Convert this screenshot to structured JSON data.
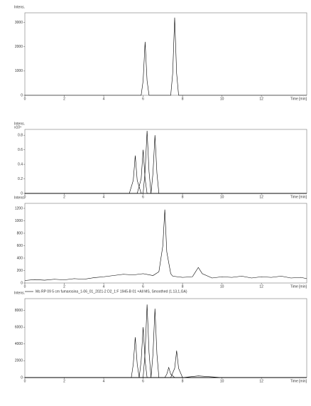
{
  "chart_data": [
    {
      "type": "line",
      "y_label": "Intens.",
      "x_label": "Time [min]",
      "x": [
        0,
        2,
        4,
        5.9,
        6.0,
        6.1,
        6.2,
        6.3,
        7.4,
        7.5,
        7.6,
        7.7,
        7.8,
        10,
        14.3
      ],
      "series": [
        {
          "color": "#000000",
          "values": [
            0,
            0,
            0,
            0,
            600,
            2200,
            600,
            0,
            0,
            900,
            3200,
            900,
            0,
            0,
            0
          ]
        }
      ],
      "xlim": [
        0,
        14.3
      ],
      "ylim": [
        0,
        3400
      ],
      "xticks": [
        0,
        2,
        4,
        6,
        8,
        10,
        12
      ],
      "yticks": [
        0,
        1000,
        2000,
        3000
      ]
    },
    {
      "type": "line",
      "y_label": "Intens.",
      "y_scale_label": "x10⁴",
      "x_label": "Time [min]",
      "x": [
        0,
        2,
        4,
        5.3,
        5.5,
        5.6,
        5.7,
        5.9,
        6.0,
        6.1,
        6.2,
        6.3,
        6.4,
        6.5,
        6.6,
        6.7,
        6.8,
        7,
        10,
        14.3
      ],
      "series": [
        {
          "color": "#000000",
          "values": [
            0,
            0,
            0,
            0,
            0.18,
            0.52,
            0.18,
            0,
            0,
            0,
            0,
            0,
            0,
            0,
            0,
            0,
            0,
            0,
            0,
            0
          ]
        },
        {
          "color": "#000000",
          "values": [
            0,
            0,
            0,
            0,
            0,
            0,
            0,
            0.2,
            0.6,
            0.2,
            0,
            0,
            0,
            0,
            0,
            0,
            0,
            0,
            0,
            0
          ]
        },
        {
          "color": "#000000",
          "values": [
            0,
            0,
            0,
            0,
            0,
            0,
            0,
            0,
            0,
            0.3,
            0.86,
            0.3,
            0,
            0,
            0,
            0,
            0,
            0,
            0,
            0
          ]
        },
        {
          "color": "#000000",
          "values": [
            0,
            0,
            0,
            0,
            0,
            0,
            0,
            0,
            0,
            0,
            0,
            0,
            0,
            0.28,
            0.8,
            0.28,
            0,
            0,
            0,
            0
          ]
        }
      ],
      "xlim": [
        0,
        14.3
      ],
      "ylim": [
        0,
        0.88
      ],
      "xticks": [
        0,
        2,
        4,
        6,
        8,
        10,
        12
      ],
      "yticks": [
        0,
        0.2,
        0.4,
        0.6,
        0.8
      ]
    },
    {
      "type": "line",
      "y_label": "Intens.",
      "x_label": "Time [min]",
      "x": [
        0,
        0.5,
        1,
        1.5,
        2,
        2.5,
        3,
        3.5,
        4,
        4.5,
        5,
        5.5,
        6,
        6.5,
        6.8,
        7.0,
        7.1,
        7.2,
        7.4,
        7.5,
        8,
        8.5,
        8.7,
        8.8,
        9,
        9.5,
        10,
        10.5,
        11,
        11.5,
        12,
        12.5,
        13,
        13.5,
        14,
        14.3
      ],
      "series": [
        {
          "name": "Ms RP 09 5 cm fumarosina_1-06_01_2021-2 D2_1:F 1945-B 01 +All MS, Smoothed (1.13,1,GA)",
          "color": "#000000",
          "values": [
            40,
            55,
            45,
            60,
            50,
            70,
            60,
            85,
            100,
            120,
            140,
            130,
            150,
            120,
            180,
            600,
            1180,
            500,
            150,
            110,
            90,
            100,
            200,
            250,
            150,
            80,
            100,
            90,
            110,
            80,
            100,
            90,
            110,
            80,
            90,
            70
          ]
        }
      ],
      "xlim": [
        0,
        14.3
      ],
      "ylim": [
        0,
        1280
      ],
      "xticks": [
        0,
        2,
        4,
        6,
        8,
        10,
        12
      ],
      "yticks": [
        0,
        200,
        400,
        600,
        800,
        1000,
        1200
      ]
    },
    {
      "type": "line",
      "y_label": "Intens.",
      "x_label": "Time [min]",
      "x": [
        0,
        2,
        4,
        5.4,
        5.5,
        5.6,
        5.7,
        5.8,
        5.9,
        6.0,
        6.1,
        6.2,
        6.3,
        6.4,
        6.5,
        6.6,
        6.7,
        6.8,
        7.1,
        7.2,
        7.3,
        7.4,
        7.6,
        7.7,
        7.8,
        8,
        8.8,
        10,
        14.3
      ],
      "series": [
        {
          "color": "#000000",
          "values": [
            0,
            0,
            0,
            0,
            1600,
            4800,
            1600,
            0,
            0,
            0,
            0,
            0,
            0,
            0,
            0,
            0,
            0,
            0,
            0,
            0,
            0,
            0,
            0,
            0,
            0,
            0,
            0,
            0,
            0
          ]
        },
        {
          "color": "#000000",
          "values": [
            0,
            0,
            0,
            0,
            0,
            0,
            0,
            0,
            2000,
            6000,
            2000,
            0,
            0,
            0,
            0,
            0,
            0,
            0,
            0,
            0,
            0,
            0,
            0,
            0,
            0,
            0,
            0,
            0,
            0
          ]
        },
        {
          "color": "#000000",
          "values": [
            0,
            0,
            0,
            0,
            0,
            0,
            0,
            0,
            0,
            0,
            3000,
            8700,
            3000,
            0,
            0,
            0,
            0,
            0,
            0,
            0,
            0,
            0,
            0,
            0,
            0,
            0,
            0,
            0,
            0
          ]
        },
        {
          "color": "#000000",
          "values": [
            0,
            0,
            0,
            0,
            0,
            0,
            0,
            0,
            0,
            0,
            0,
            0,
            0,
            0,
            2800,
            8200,
            2800,
            0,
            0,
            0,
            0,
            0,
            0,
            0,
            0,
            0,
            0,
            0,
            0
          ]
        },
        {
          "color": "#000000",
          "values": [
            0,
            0,
            0,
            0,
            0,
            0,
            0,
            0,
            0,
            0,
            0,
            0,
            0,
            0,
            0,
            0,
            0,
            0,
            0,
            400,
            1200,
            400,
            0,
            0,
            0,
            0,
            0,
            0,
            0
          ]
        },
        {
          "color": "#000000",
          "values": [
            0,
            0,
            0,
            0,
            0,
            0,
            0,
            0,
            0,
            0,
            0,
            0,
            0,
            0,
            0,
            0,
            0,
            0,
            0,
            0,
            0,
            0,
            1100,
            3200,
            1100,
            0,
            200,
            0,
            0
          ]
        }
      ],
      "xlim": [
        0,
        14.3
      ],
      "ylim": [
        0,
        9400
      ],
      "xticks": [
        0,
        2,
        4,
        6,
        8,
        10,
        12
      ],
      "yticks": [
        0,
        2000,
        4000,
        6000,
        8000
      ]
    }
  ]
}
